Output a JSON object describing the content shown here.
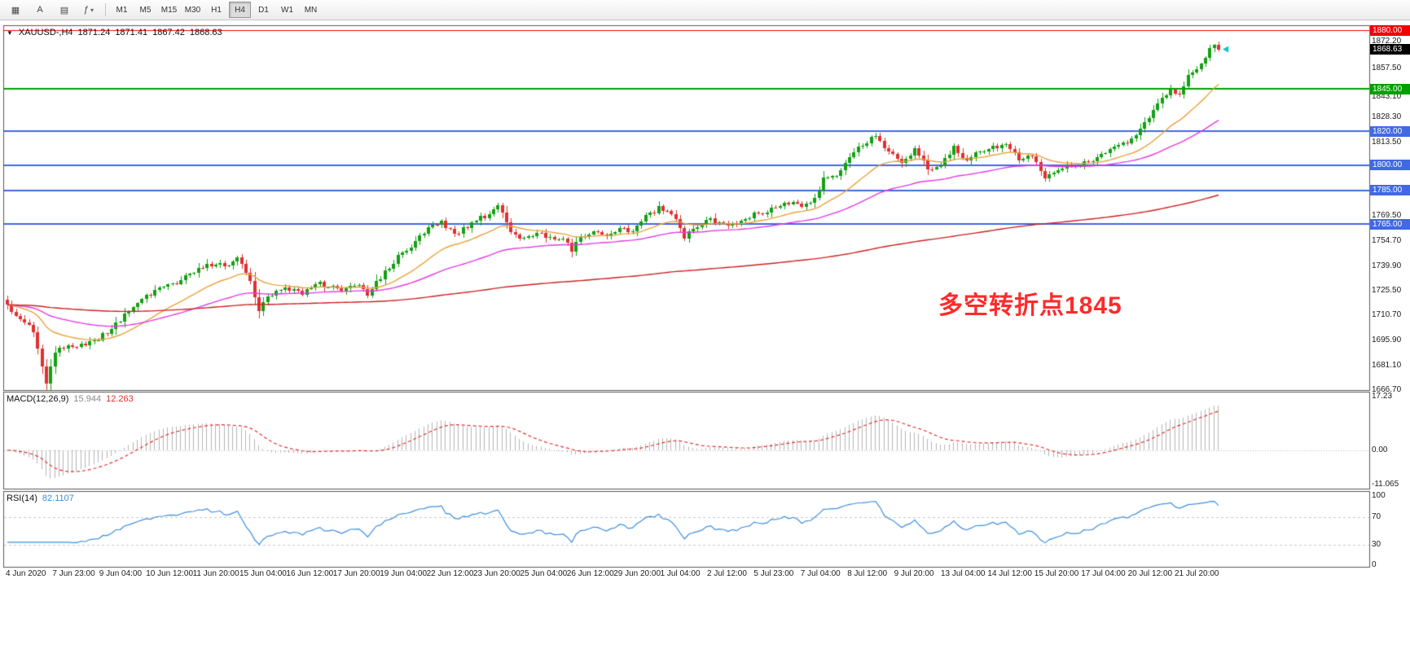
{
  "toolbar": {
    "icons": [
      {
        "name": "templates-icon",
        "glyph": "▦"
      },
      {
        "name": "font-tool-icon",
        "glyph": "A"
      },
      {
        "name": "chart-style-icon",
        "glyph": "▤"
      },
      {
        "name": "indicators-icon",
        "glyph": "ƒ",
        "caret": "▾"
      }
    ],
    "timeframes": [
      {
        "label": "M1"
      },
      {
        "label": "M5"
      },
      {
        "label": "M15"
      },
      {
        "label": "M30"
      },
      {
        "label": "H1"
      },
      {
        "label": "H4",
        "active": true
      },
      {
        "label": "D1"
      },
      {
        "label": "W1"
      },
      {
        "label": "MN"
      }
    ]
  },
  "chart": {
    "title": {
      "collapse_glyph": "▼",
      "symbol_period": "XAUUSD-,H4",
      "open": "1871.24",
      "high": "1871.41",
      "low": "1867.42",
      "close": "1868.63"
    },
    "annotation": {
      "text": "多空转折点1845",
      "color": "#ff2b2b"
    },
    "price_range": {
      "top": 1880.0,
      "bottom": 1666.7
    },
    "colors": {
      "candle_up": "#12a112",
      "candle_down": "#e03030",
      "macd_hist": "#b4b4b4",
      "macd_signal": "#e03030",
      "rsi": "#3e8ede",
      "price_marker": "#00c8c8"
    },
    "price_axis": {
      "ticks": [
        "1872.20",
        "1857.50",
        "1843.10",
        "1828.30",
        "1813.50",
        "1769.50",
        "1754.70",
        "1739.90",
        "1725.50",
        "1710.70",
        "1695.90",
        "1681.10",
        "1666.70"
      ],
      "levels": [
        {
          "label": "1880.00",
          "price": 1880.0,
          "color": "#f20000",
          "line_width": 1
        },
        {
          "label": "1845.00",
          "price": 1845.0,
          "color": "#00a000",
          "line_width": 2
        },
        {
          "label": "1820.00",
          "price": 1820.0,
          "color": "#4169e1",
          "line_width": 2
        },
        {
          "label": "1800.00",
          "price": 1800.0,
          "color": "#4169e1",
          "line_width": 2
        },
        {
          "label": "1785.00",
          "price": 1785.0,
          "color": "#4169e1",
          "line_width": 2
        },
        {
          "label": "1765.00",
          "price": 1765.0,
          "color": "#4169e1",
          "line_width": 2
        }
      ],
      "current": {
        "label": "1868.63",
        "price": 1868.63,
        "bg": "#000000"
      }
    },
    "time_axis": {
      "labels": [
        "4 Jun 2020",
        "7 Jun 23:00",
        "9 Jun 04:00",
        "10 Jun 12:00",
        "11 Jun 20:00",
        "15 Jun 04:00",
        "16 Jun 12:00",
        "17 Jun 20:00",
        "19 Jun 04:00",
        "22 Jun 12:00",
        "23 Jun 20:00",
        "25 Jun 04:00",
        "26 Jun 12:00",
        "29 Jun 20:00",
        "1 Jul 04:00",
        "2 Jul 12:00",
        "5 Jul 23:00",
        "7 Jul 04:00",
        "8 Jul 12:00",
        "9 Jul 20:00",
        "13 Jul 04:00",
        "14 Jul 12:00",
        "15 Jul 20:00",
        "17 Jul 04:00",
        "20 Jul 12:00",
        "21 Jul 20:00"
      ]
    }
  },
  "macd_panel": {
    "label": "MACD(12,26,9)",
    "value_main": "15.944",
    "value_signal": "12.263",
    "ticks": [
      "17.23",
      "0.00",
      "-11.065"
    ]
  },
  "rsi_panel": {
    "label": "RSI(14)",
    "value": "82.1107",
    "ticks": [
      "100",
      "70",
      "30",
      "0"
    ]
  },
  "chart_data": {
    "type": "candlestick",
    "symbol": "XAUUSD",
    "period": "H4",
    "candle_count": 280,
    "last_open": 1871.24,
    "last_high": 1871.41,
    "last_low": 1867.42,
    "last_close": 1868.63,
    "support_resistance_levels": [
      1880.0,
      1845.0,
      1820.0,
      1800.0,
      1785.0,
      1765.0
    ],
    "price_path_anchors": [
      [
        0,
        1716
      ],
      [
        3,
        1710
      ],
      [
        6,
        1701
      ],
      [
        8,
        1679
      ],
      [
        9,
        1671
      ],
      [
        11,
        1688
      ],
      [
        14,
        1694
      ],
      [
        18,
        1692
      ],
      [
        22,
        1699
      ],
      [
        26,
        1708
      ],
      [
        30,
        1718
      ],
      [
        34,
        1726
      ],
      [
        38,
        1729
      ],
      [
        42,
        1736
      ],
      [
        46,
        1742
      ],
      [
        50,
        1740
      ],
      [
        53,
        1745
      ],
      [
        56,
        1730
      ],
      [
        58,
        1713
      ],
      [
        60,
        1723
      ],
      [
        64,
        1727
      ],
      [
        68,
        1724
      ],
      [
        72,
        1729
      ],
      [
        76,
        1726
      ],
      [
        80,
        1729
      ],
      [
        83,
        1724
      ],
      [
        86,
        1733
      ],
      [
        90,
        1746
      ],
      [
        94,
        1754
      ],
      [
        97,
        1762
      ],
      [
        100,
        1766
      ],
      [
        103,
        1758
      ],
      [
        106,
        1763
      ],
      [
        110,
        1770
      ],
      [
        113,
        1776
      ],
      [
        116,
        1761
      ],
      [
        119,
        1756
      ],
      [
        122,
        1760
      ],
      [
        125,
        1757
      ],
      [
        128,
        1756
      ],
      [
        130,
        1749
      ],
      [
        132,
        1757
      ],
      [
        135,
        1761
      ],
      [
        138,
        1759
      ],
      [
        141,
        1763
      ],
      [
        144,
        1761
      ],
      [
        147,
        1771
      ],
      [
        150,
        1774
      ],
      [
        153,
        1772
      ],
      [
        156,
        1758
      ],
      [
        159,
        1762
      ],
      [
        162,
        1768
      ],
      [
        165,
        1764
      ],
      [
        168,
        1766
      ],
      [
        171,
        1770
      ],
      [
        174,
        1772
      ],
      [
        177,
        1774
      ],
      [
        180,
        1778
      ],
      [
        183,
        1775
      ],
      [
        186,
        1781
      ],
      [
        188,
        1791
      ],
      [
        191,
        1794
      ],
      [
        194,
        1804
      ],
      [
        197,
        1812
      ],
      [
        200,
        1817
      ],
      [
        203,
        1808
      ],
      [
        206,
        1801
      ],
      [
        209,
        1809
      ],
      [
        212,
        1797
      ],
      [
        215,
        1801
      ],
      [
        218,
        1810
      ],
      [
        221,
        1803
      ],
      [
        224,
        1808
      ],
      [
        227,
        1810
      ],
      [
        230,
        1813
      ],
      [
        233,
        1804
      ],
      [
        236,
        1806
      ],
      [
        239,
        1791
      ],
      [
        242,
        1797
      ],
      [
        245,
        1800
      ],
      [
        248,
        1801
      ],
      [
        251,
        1805
      ],
      [
        254,
        1809
      ],
      [
        257,
        1812
      ],
      [
        260,
        1818
      ],
      [
        263,
        1828
      ],
      [
        266,
        1840
      ],
      [
        268,
        1844
      ],
      [
        270,
        1841
      ],
      [
        272,
        1852
      ],
      [
        275,
        1861
      ],
      [
        278,
        1871
      ],
      [
        279,
        1868.63
      ]
    ],
    "moving_averages": [
      {
        "name": "ma-fast",
        "color": "#e8a23c",
        "approx_period": 20
      },
      {
        "name": "ma-mid",
        "color": "#e23ce2",
        "approx_period": 55
      },
      {
        "name": "ma-slow",
        "color": "#cc2222",
        "approx_period": 250
      }
    ],
    "indicators": [
      {
        "name": "MACD",
        "params": [
          12,
          26,
          9
        ],
        "current_values": [
          15.944,
          12.263
        ],
        "axis_range": [
          -11.065,
          17.23
        ]
      },
      {
        "name": "RSI",
        "params": [
          14
        ],
        "current_value": 82.1107,
        "axis_range": [
          0,
          100
        ],
        "levels": [
          30,
          70
        ]
      }
    ]
  }
}
